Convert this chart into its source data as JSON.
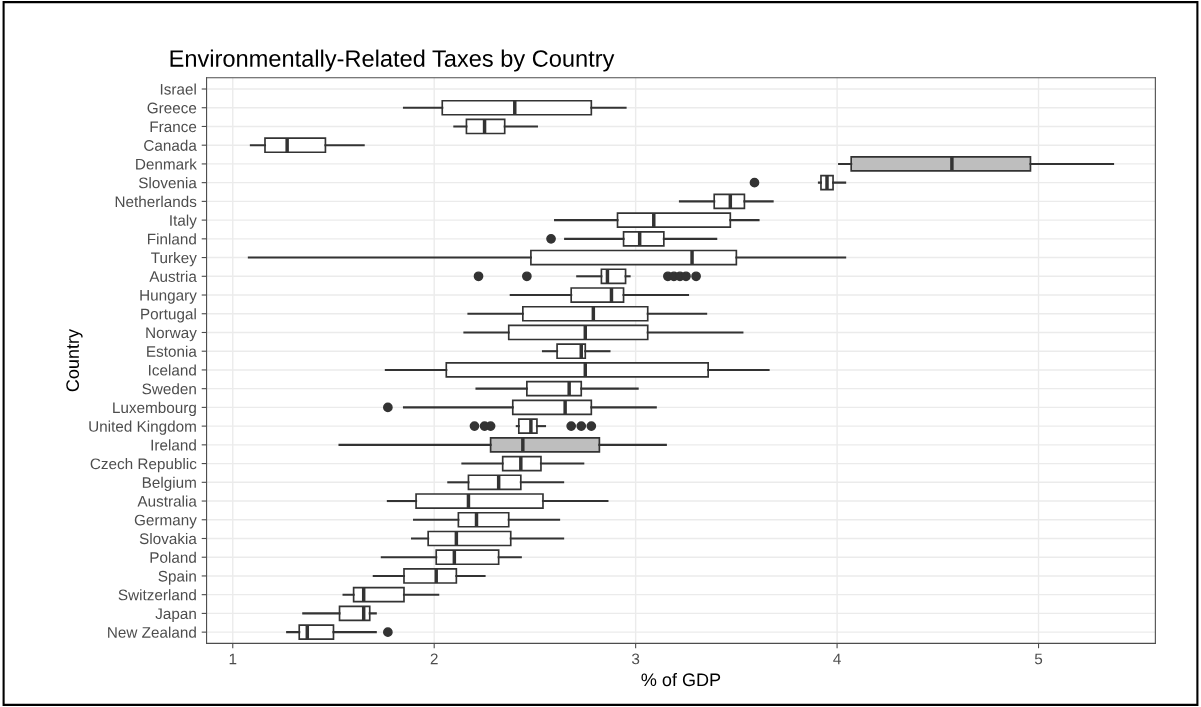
{
  "chart_data": {
    "type": "box",
    "orientation": "horizontal",
    "title": "Environmentally-Related Taxes by Country",
    "xlabel": "% of GDP",
    "ylabel": "Country",
    "categories": [
      "Israel",
      "Greece",
      "France",
      "Canada",
      "Denmark",
      "Slovenia",
      "Netherlands",
      "Italy",
      "Finland",
      "Turkey",
      "Austria",
      "Hungary",
      "Portugal",
      "Norway",
      "Estonia",
      "Iceland",
      "Sweden",
      "Luxembourg",
      "United Kingdom",
      "Ireland",
      "Czech Republic",
      "Belgium",
      "Australia",
      "Germany",
      "Slovakia",
      "Poland",
      "Spain",
      "Switzerland",
      "Japan",
      "New Zealand"
    ],
    "colors": [
      "#ffffff",
      "#ffffff",
      "#ffffff",
      "#ffffff",
      "#bebebe",
      "#ffffff",
      "#ffffff",
      "#ffffff",
      "#ffffff",
      "#ffffff",
      "#ffffff",
      "#ffffff",
      "#ffffff",
      "#ffffff",
      "#ffffff",
      "#ffffff",
      "#ffffff",
      "#ffffff",
      "#ffffff",
      "#bebebe",
      "#ffffff",
      "#ffffff",
      "#ffffff",
      "#ffffff",
      "#ffffff",
      "#ffffff",
      "#ffffff",
      "#ffffff",
      "#ffffff",
      "#ffffff"
    ],
    "boxes": [
      null,
      {
        "low": 1.85,
        "q1": 2.04,
        "median": 2.4,
        "q3": 2.78,
        "high": 2.95
      },
      {
        "low": 2.1,
        "q1": 2.16,
        "median": 2.25,
        "q3": 2.35,
        "high": 2.51
      },
      {
        "low": 1.09,
        "q1": 1.16,
        "median": 1.27,
        "q3": 1.46,
        "high": 1.65
      },
      {
        "low": 4.01,
        "q1": 4.07,
        "median": 4.57,
        "q3": 4.96,
        "high": 5.37
      },
      {
        "low": 3.91,
        "q1": 3.92,
        "median": 3.95,
        "q3": 3.98,
        "high": 4.04,
        "outliers": [
          3.59
        ]
      },
      {
        "low": 3.22,
        "q1": 3.39,
        "median": 3.47,
        "q3": 3.54,
        "high": 3.68
      },
      {
        "low": 2.6,
        "q1": 2.91,
        "median": 3.09,
        "q3": 3.47,
        "high": 3.61
      },
      {
        "low": 2.65,
        "q1": 2.94,
        "median": 3.02,
        "q3": 3.14,
        "high": 3.4,
        "outliers": [
          2.58
        ]
      },
      {
        "low": 1.08,
        "q1": 2.48,
        "median": 3.28,
        "q3": 3.5,
        "high": 4.04
      },
      {
        "low": 2.71,
        "q1": 2.83,
        "median": 2.86,
        "q3": 2.95,
        "high": 2.97,
        "outliers": [
          2.22,
          2.46,
          3.16,
          3.19,
          3.22,
          3.25,
          3.3
        ]
      },
      {
        "low": 2.38,
        "q1": 2.68,
        "median": 2.88,
        "q3": 2.94,
        "high": 3.26
      },
      {
        "low": 2.17,
        "q1": 2.44,
        "median": 2.79,
        "q3": 3.06,
        "high": 3.35
      },
      {
        "low": 2.15,
        "q1": 2.37,
        "median": 2.75,
        "q3": 3.06,
        "high": 3.53
      },
      {
        "low": 2.54,
        "q1": 2.61,
        "median": 2.73,
        "q3": 2.75,
        "high": 2.87
      },
      {
        "low": 1.76,
        "q1": 2.06,
        "median": 2.75,
        "q3": 3.36,
        "high": 3.66
      },
      {
        "low": 2.21,
        "q1": 2.46,
        "median": 2.67,
        "q3": 2.73,
        "high": 3.01
      },
      {
        "low": 1.85,
        "q1": 2.39,
        "median": 2.65,
        "q3": 2.78,
        "high": 3.1,
        "outliers": [
          1.77
        ]
      },
      {
        "low": 2.41,
        "q1": 2.42,
        "median": 2.48,
        "q3": 2.51,
        "high": 2.55,
        "outliers": [
          2.2,
          2.25,
          2.28,
          2.68,
          2.73,
          2.78
        ]
      },
      {
        "low": 1.53,
        "q1": 2.28,
        "median": 2.44,
        "q3": 2.82,
        "high": 3.15
      },
      {
        "low": 2.14,
        "q1": 2.34,
        "median": 2.43,
        "q3": 2.53,
        "high": 2.74
      },
      {
        "low": 2.07,
        "q1": 2.17,
        "median": 2.32,
        "q3": 2.43,
        "high": 2.64
      },
      {
        "low": 1.77,
        "q1": 1.91,
        "median": 2.17,
        "q3": 2.54,
        "high": 2.86
      },
      {
        "low": 1.9,
        "q1": 2.12,
        "median": 2.21,
        "q3": 2.37,
        "high": 2.62
      },
      {
        "low": 1.89,
        "q1": 1.97,
        "median": 2.11,
        "q3": 2.38,
        "high": 2.64
      },
      {
        "low": 1.74,
        "q1": 2.01,
        "median": 2.1,
        "q3": 2.32,
        "high": 2.43
      },
      {
        "low": 1.7,
        "q1": 1.85,
        "median": 2.01,
        "q3": 2.11,
        "high": 2.25
      },
      {
        "low": 1.55,
        "q1": 1.6,
        "median": 1.65,
        "q3": 1.85,
        "high": 2.02
      },
      {
        "low": 1.35,
        "q1": 1.53,
        "median": 1.65,
        "q3": 1.68,
        "high": 1.71
      },
      {
        "low": 1.27,
        "q1": 1.33,
        "median": 1.37,
        "q3": 1.5,
        "high": 1.71,
        "outliers": [
          1.77
        ]
      }
    ],
    "xlim": [
      0.87,
      5.58
    ],
    "xticks": [
      1,
      2,
      3,
      4,
      5
    ],
    "grid": true
  }
}
